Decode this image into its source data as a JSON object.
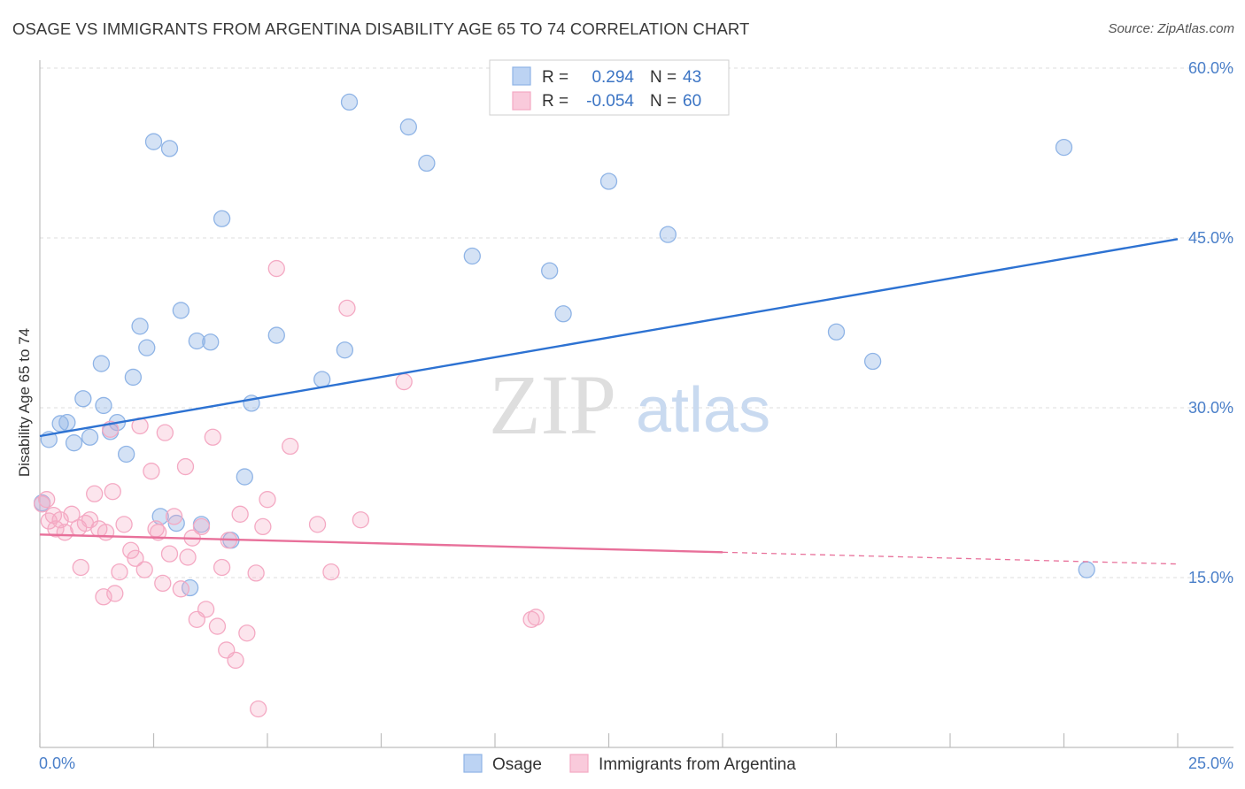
{
  "title": "OSAGE VS IMMIGRANTS FROM ARGENTINA DISABILITY AGE 65 TO 74 CORRELATION CHART",
  "source": "Source: ZipAtlas.com",
  "watermark": {
    "zip": "ZIP",
    "atlas": "atlas"
  },
  "chart_data": {
    "type": "scatter",
    "title": "OSAGE VS IMMIGRANTS FROM ARGENTINA DISABILITY AGE 65 TO 74 CORRELATION CHART",
    "xlabel": "",
    "ylabel": "Disability Age 65 to 74",
    "xlim": [
      0,
      25
    ],
    "ylim": [
      0,
      60
    ],
    "x_tick_labels": {
      "min": "0.0%",
      "max": "25.0%"
    },
    "x_ticks": [
      0,
      2.5,
      5,
      7.5,
      10,
      12.5,
      15,
      17.5,
      20,
      22.5,
      25
    ],
    "y_ticks": [
      15,
      30,
      45,
      60
    ],
    "y_tick_labels": [
      "15.0%",
      "30.0%",
      "45.0%",
      "60.0%"
    ],
    "grid": true,
    "legend_position": "top-center",
    "legend": [
      {
        "label": "R =",
        "r": "0.294",
        "n_label": "N =",
        "n": "43"
      },
      {
        "label": "R =",
        "r": "-0.054",
        "n_label": "N =",
        "n": "60"
      }
    ],
    "bottom_legend": [
      "Osage",
      "Immigrants from Argentina"
    ],
    "series": [
      {
        "name": "Osage",
        "color": "#8fb4e6",
        "line_color": "#2d72d2",
        "trend": {
          "x": [
            0,
            25
          ],
          "y": [
            27.5,
            44.9
          ],
          "dashed_from": null
        },
        "points": [
          [
            0.05,
            21.6
          ],
          [
            0.2,
            27.2
          ],
          [
            0.45,
            28.6
          ],
          [
            0.6,
            28.7
          ],
          [
            0.75,
            26.9
          ],
          [
            0.95,
            30.8
          ],
          [
            1.1,
            27.4
          ],
          [
            1.35,
            33.9
          ],
          [
            1.4,
            30.2
          ],
          [
            1.55,
            27.9
          ],
          [
            1.7,
            28.7
          ],
          [
            1.9,
            25.9
          ],
          [
            2.05,
            32.7
          ],
          [
            2.2,
            37.2
          ],
          [
            2.35,
            35.3
          ],
          [
            2.5,
            53.5
          ],
          [
            2.65,
            20.4
          ],
          [
            2.85,
            52.9
          ],
          [
            3.0,
            19.8
          ],
          [
            3.1,
            38.6
          ],
          [
            3.3,
            14.1
          ],
          [
            3.45,
            35.9
          ],
          [
            3.55,
            19.7
          ],
          [
            3.75,
            35.8
          ],
          [
            4.0,
            46.7
          ],
          [
            4.2,
            18.3
          ],
          [
            4.5,
            23.9
          ],
          [
            4.65,
            30.4
          ],
          [
            5.2,
            36.4
          ],
          [
            6.2,
            32.5
          ],
          [
            6.7,
            35.1
          ],
          [
            6.8,
            57.0
          ],
          [
            8.1,
            54.8
          ],
          [
            8.5,
            51.6
          ],
          [
            9.5,
            43.4
          ],
          [
            11.2,
            42.1
          ],
          [
            11.5,
            38.3
          ],
          [
            12.5,
            50.0
          ],
          [
            13.8,
            45.3
          ],
          [
            17.5,
            36.7
          ],
          [
            18.3,
            34.1
          ],
          [
            22.5,
            53.0
          ],
          [
            23.0,
            15.7
          ]
        ]
      },
      {
        "name": "Immigrants from Argentina",
        "color": "#f4a9c3",
        "line_color": "#e8709a",
        "trend": {
          "x": [
            0,
            25
          ],
          "y": [
            18.8,
            16.2
          ],
          "dashed_from": 15
        },
        "points": [
          [
            0.05,
            21.5
          ],
          [
            0.2,
            20.0
          ],
          [
            0.35,
            19.3
          ],
          [
            0.45,
            20.1
          ],
          [
            0.55,
            19.0
          ],
          [
            0.7,
            20.6
          ],
          [
            0.85,
            19.4
          ],
          [
            0.9,
            15.9
          ],
          [
            1.0,
            19.8
          ],
          [
            1.1,
            20.1
          ],
          [
            1.2,
            22.4
          ],
          [
            1.3,
            19.3
          ],
          [
            1.4,
            13.3
          ],
          [
            1.55,
            28.1
          ],
          [
            1.6,
            22.6
          ],
          [
            1.65,
            13.6
          ],
          [
            1.75,
            15.5
          ],
          [
            1.85,
            19.7
          ],
          [
            2.0,
            17.4
          ],
          [
            2.1,
            16.7
          ],
          [
            2.2,
            28.4
          ],
          [
            2.3,
            15.7
          ],
          [
            2.45,
            24.4
          ],
          [
            2.55,
            19.3
          ],
          [
            2.7,
            14.5
          ],
          [
            2.75,
            27.8
          ],
          [
            2.85,
            17.1
          ],
          [
            2.95,
            20.4
          ],
          [
            3.1,
            14.0
          ],
          [
            3.2,
            24.8
          ],
          [
            3.25,
            16.8
          ],
          [
            3.35,
            18.5
          ],
          [
            3.45,
            11.3
          ],
          [
            3.55,
            19.5
          ],
          [
            3.65,
            12.2
          ],
          [
            3.8,
            27.4
          ],
          [
            3.9,
            10.7
          ],
          [
            4.0,
            15.9
          ],
          [
            4.1,
            8.6
          ],
          [
            4.15,
            18.3
          ],
          [
            4.3,
            7.7
          ],
          [
            4.4,
            20.6
          ],
          [
            4.55,
            10.1
          ],
          [
            4.75,
            15.4
          ],
          [
            4.8,
            3.4
          ],
          [
            5.0,
            21.9
          ],
          [
            5.2,
            42.3
          ],
          [
            5.5,
            26.6
          ],
          [
            6.1,
            19.7
          ],
          [
            6.4,
            15.5
          ],
          [
            6.75,
            38.8
          ],
          [
            7.05,
            20.1
          ],
          [
            8.0,
            32.3
          ],
          [
            10.8,
            11.3
          ],
          [
            10.9,
            11.5
          ],
          [
            0.15,
            21.9
          ],
          [
            0.3,
            20.5
          ],
          [
            1.45,
            19.0
          ],
          [
            2.6,
            19.0
          ],
          [
            4.9,
            19.5
          ]
        ]
      }
    ]
  }
}
